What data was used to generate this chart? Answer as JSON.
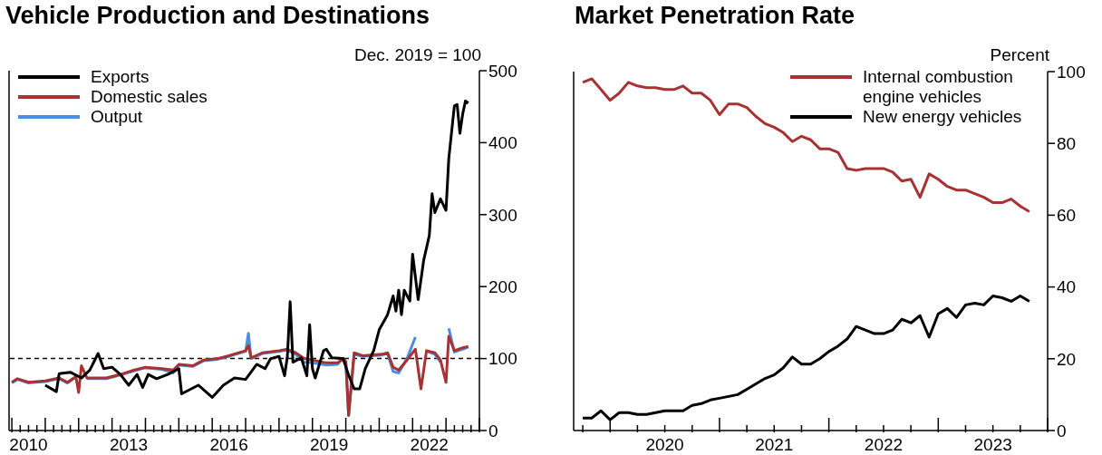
{
  "chart_data": [
    {
      "type": "line",
      "title": "Vehicle Production and Destinations",
      "ylabel": "Dec. 2019 = 100",
      "legend": "top left",
      "xlim": [
        "2009-12",
        "2024-01"
      ],
      "xticks": [
        {
          "value": "2010-01",
          "label": null
        },
        {
          "value": "2010-04",
          "label": null
        },
        {
          "value": "2010-07",
          "label": "2010"
        },
        {
          "value": "2010-10",
          "label": null
        },
        {
          "value": "2011-01",
          "label": null
        },
        {
          "value": "2011-04",
          "label": null
        },
        {
          "value": "2011-07",
          "label": null
        },
        {
          "value": "2011-10",
          "label": null
        },
        {
          "value": "2012-01",
          "label": null
        },
        {
          "value": "2012-04",
          "label": null
        },
        {
          "value": "2012-07",
          "label": null
        },
        {
          "value": "2012-10",
          "label": null
        },
        {
          "value": "2013-01",
          "label": null
        },
        {
          "value": "2013-04",
          "label": null
        },
        {
          "value": "2013-07",
          "label": "2013"
        },
        {
          "value": "2013-10",
          "label": null
        },
        {
          "value": "2014-01",
          "label": null
        },
        {
          "value": "2014-04",
          "label": null
        },
        {
          "value": "2014-07",
          "label": null
        },
        {
          "value": "2014-10",
          "label": null
        },
        {
          "value": "2015-01",
          "label": null
        },
        {
          "value": "2015-04",
          "label": null
        },
        {
          "value": "2015-07",
          "label": null
        },
        {
          "value": "2015-10",
          "label": null
        },
        {
          "value": "2016-01",
          "label": null
        },
        {
          "value": "2016-04",
          "label": null
        },
        {
          "value": "2016-07",
          "label": "2016"
        },
        {
          "value": "2016-10",
          "label": null
        },
        {
          "value": "2017-01",
          "label": null
        },
        {
          "value": "2017-04",
          "label": null
        },
        {
          "value": "2017-07",
          "label": null
        },
        {
          "value": "2017-10",
          "label": null
        },
        {
          "value": "2018-01",
          "label": null
        },
        {
          "value": "2018-04",
          "label": null
        },
        {
          "value": "2018-07",
          "label": null
        },
        {
          "value": "2018-10",
          "label": null
        },
        {
          "value": "2019-01",
          "label": null
        },
        {
          "value": "2019-04",
          "label": null
        },
        {
          "value": "2019-07",
          "label": "2019"
        },
        {
          "value": "2019-10",
          "label": null
        },
        {
          "value": "2020-01",
          "label": null
        },
        {
          "value": "2020-04",
          "label": null
        },
        {
          "value": "2020-07",
          "label": null
        },
        {
          "value": "2020-10",
          "label": null
        },
        {
          "value": "2021-01",
          "label": null
        },
        {
          "value": "2021-04",
          "label": null
        },
        {
          "value": "2021-07",
          "label": null
        },
        {
          "value": "2021-10",
          "label": null
        },
        {
          "value": "2022-01",
          "label": null
        },
        {
          "value": "2022-04",
          "label": null
        },
        {
          "value": "2022-07",
          "label": "2022"
        },
        {
          "value": "2022-10",
          "label": null
        },
        {
          "value": "2023-01",
          "label": null
        },
        {
          "value": "2023-04",
          "label": null
        },
        {
          "value": "2023-07",
          "label": null
        },
        {
          "value": "2023-10",
          "label": null
        },
        {
          "value": "2024-01",
          "label": null
        }
      ],
      "ylim": [
        0,
        500
      ],
      "yticks": [
        0,
        100,
        200,
        300,
        400,
        500
      ],
      "ref_lines": [
        {
          "axis": "y",
          "value": 100,
          "color": "#000000",
          "line_style": "dashed"
        }
      ],
      "series": [
        {
          "name": "Exports",
          "color": "#000000",
          "x": [
            "2011-01",
            "2011-05",
            "2011-06",
            "2011-10",
            "2012-02",
            "2012-05",
            "2012-08",
            "2012-10",
            "2013-01",
            "2013-04",
            "2013-07",
            "2013-10",
            "2013-12",
            "2014-02",
            "2014-05",
            "2014-09",
            "2015-01",
            "2015-02",
            "2015-08",
            "2016-01",
            "2016-05",
            "2016-09",
            "2017-01",
            "2017-05",
            "2017-08",
            "2017-10",
            "2018-01",
            "2018-03",
            "2018-04",
            "2018-05",
            "2018-06",
            "2018-09",
            "2018-11",
            "2018-12",
            "2019-01",
            "2019-02",
            "2019-05",
            "2019-06",
            "2019-08",
            "2019-12",
            "2020-02",
            "2020-04",
            "2020-06",
            "2020-08",
            "2020-11",
            "2021-01",
            "2021-04",
            "2021-06",
            "2021-07",
            "2021-08",
            "2021-09",
            "2021-10",
            "2021-12",
            "2022-01",
            "2022-03",
            "2022-05",
            "2022-07",
            "2022-08",
            "2022-09",
            "2022-11",
            "2023-01",
            "2023-02",
            "2023-04",
            "2023-05",
            "2023-06",
            "2023-07",
            "2023-08",
            "2023-09"
          ],
          "values": [
            63,
            54,
            79,
            81,
            73,
            84,
            107,
            86,
            88,
            78,
            63,
            78,
            60,
            78,
            72,
            78,
            86,
            51,
            63,
            46,
            63,
            73,
            71,
            92,
            86,
            100,
            103,
            76,
            103,
            179,
            95,
            101,
            76,
            147,
            86,
            73,
            111,
            113,
            101,
            100,
            77,
            58,
            58,
            86,
            111,
            140,
            161,
            187,
            166,
            195,
            161,
            195,
            180,
            245,
            182,
            237,
            271,
            329,
            303,
            322,
            306,
            378,
            451,
            453,
            413,
            440,
            458,
            455
          ]
        },
        {
          "name": "Domestic sales",
          "color": "#a83232",
          "x": [
            "2010-01",
            "2010-03",
            "2010-07",
            "2011-01",
            "2011-06",
            "2011-09",
            "2011-12",
            "2012-01",
            "2012-02",
            "2012-04",
            "2012-11",
            "2013-04",
            "2013-09",
            "2014-01",
            "2014-07",
            "2014-11",
            "2015-01",
            "2015-06",
            "2015-10",
            "2016-03",
            "2016-07",
            "2017-01",
            "2017-02",
            "2017-03",
            "2017-07",
            "2018-01",
            "2018-04",
            "2018-07",
            "2018-10",
            "2019-01",
            "2019-06",
            "2019-10",
            "2019-12",
            "2020-01",
            "2020-02",
            "2020-04",
            "2020-07",
            "2021-02",
            "2021-04",
            "2021-06",
            "2021-08",
            "2021-11",
            "2022-02",
            "2022-04",
            "2022-06",
            "2022-09",
            "2022-11",
            "2023-01",
            "2023-02",
            "2023-04",
            "2023-07",
            "2023-09"
          ],
          "values": [
            67,
            72,
            67,
            69,
            73,
            67,
            75,
            53,
            90,
            73,
            73,
            78,
            84,
            88,
            86,
            84,
            92,
            90,
            98,
            100,
            104,
            111,
            118,
            101,
            108,
            111,
            113,
            108,
            100,
            98,
            94,
            94,
            100,
            96,
            21,
            108,
            104,
            106,
            108,
            88,
            84,
            98,
            113,
            58,
            111,
            108,
            98,
            67,
            131,
            111,
            115,
            117
          ]
        },
        {
          "name": "Output",
          "color": "#4a90e2",
          "x": [
            "2010-01",
            "2010-03",
            "2010-07",
            "2011-01",
            "2011-06",
            "2011-09",
            "2011-12",
            "2012-01",
            "2012-02",
            "2012-04",
            "2012-11",
            "2013-04",
            "2013-09",
            "2014-01",
            "2014-07",
            "2014-11",
            "2015-01",
            "2015-06",
            "2015-10",
            "2016-03",
            "2016-07",
            "2017-01",
            "2017-02",
            "2017-03",
            "2017-07",
            "2018-01",
            "2018-04",
            "2018-07",
            "2018-10",
            "2019-01",
            "2019-06",
            "2019-10",
            "2019-12",
            "2020-01",
            "2020-02",
            "2020-04",
            "2020-07",
            "2021-02",
            "2021-04",
            "2021-06",
            "2021-08",
            "2021-11",
            "2022-02",
            "2022-04",
            "2022-06",
            "2022-09",
            "2022-11",
            "2023-01",
            "2023-02",
            "2023-04",
            "2023-07",
            "2023-09"
          ],
          "values": [
            66,
            71,
            66,
            68,
            72,
            66,
            74,
            null,
            null,
            72,
            72,
            77,
            83,
            87,
            85,
            80,
            91,
            89,
            97,
            99,
            103,
            110,
            135,
            100,
            107,
            110,
            112,
            106,
            95,
            94,
            91,
            92,
            100,
            95,
            21,
            106,
            103,
            105,
            107,
            82,
            80,
            100,
            130,
            null,
            110,
            106,
            95,
            null,
            142,
            109,
            113,
            116
          ]
        }
      ]
    },
    {
      "type": "line",
      "title": "Market Penetration Rate",
      "ylabel": "Percent",
      "legend": "top right",
      "xlim": [
        "2019-09",
        "2024-01"
      ],
      "xticks": [
        {
          "value": "2019-10",
          "label": null
        },
        {
          "value": "2020-01",
          "label": null
        },
        {
          "value": "2020-04",
          "label": null
        },
        {
          "value": "2020-07",
          "label": "2020"
        },
        {
          "value": "2020-10",
          "label": null
        },
        {
          "value": "2021-01",
          "label": null
        },
        {
          "value": "2021-04",
          "label": null
        },
        {
          "value": "2021-07",
          "label": "2021"
        },
        {
          "value": "2021-10",
          "label": null
        },
        {
          "value": "2022-01",
          "label": null
        },
        {
          "value": "2022-04",
          "label": null
        },
        {
          "value": "2022-07",
          "label": "2022"
        },
        {
          "value": "2022-10",
          "label": null
        },
        {
          "value": "2023-01",
          "label": null
        },
        {
          "value": "2023-04",
          "label": null
        },
        {
          "value": "2023-07",
          "label": "2023"
        },
        {
          "value": "2023-10",
          "label": null
        },
        {
          "value": "2024-01",
          "label": null
        }
      ],
      "ylim": [
        0,
        100
      ],
      "yticks": [
        0,
        20,
        40,
        60,
        80,
        100
      ],
      "series": [
        {
          "name": "Internal combustion engine vehicles",
          "color": "#a83232",
          "x": [
            "2019-10",
            "2019-11",
            "2019-12",
            "2020-01",
            "2020-02",
            "2020-03",
            "2020-04",
            "2020-05",
            "2020-06",
            "2020-07",
            "2020-08",
            "2020-09",
            "2020-10",
            "2020-11",
            "2020-12",
            "2021-01",
            "2021-02",
            "2021-03",
            "2021-04",
            "2021-05",
            "2021-06",
            "2021-07",
            "2021-08",
            "2021-09",
            "2021-10",
            "2021-11",
            "2021-12",
            "2022-01",
            "2022-02",
            "2022-03",
            "2022-04",
            "2022-05",
            "2022-06",
            "2022-07",
            "2022-08",
            "2022-09",
            "2022-10",
            "2022-11",
            "2022-12",
            "2023-01",
            "2023-02",
            "2023-03",
            "2023-04",
            "2023-05",
            "2023-06",
            "2023-07",
            "2023-08",
            "2023-09",
            "2023-10",
            "2023-11"
          ],
          "values": [
            97,
            98,
            95,
            92,
            94,
            97,
            96,
            95.5,
            95.5,
            95,
            95,
            96,
            94,
            94,
            92,
            88,
            91,
            91,
            90,
            87.5,
            85.5,
            84.5,
            83,
            80.5,
            82,
            81,
            78.5,
            78.5,
            77.5,
            73,
            72.5,
            73,
            73,
            73,
            72,
            69.5,
            70,
            65,
            71.5,
            70,
            68,
            67,
            67,
            66,
            65,
            63.5,
            63.5,
            64.5,
            62.5,
            61
          ]
        },
        {
          "name": "New energy vehicles",
          "color": "#000000",
          "x": [
            "2019-10",
            "2019-11",
            "2019-12",
            "2020-01",
            "2020-02",
            "2020-03",
            "2020-04",
            "2020-05",
            "2020-06",
            "2020-07",
            "2020-08",
            "2020-09",
            "2020-10",
            "2020-11",
            "2020-12",
            "2021-01",
            "2021-02",
            "2021-03",
            "2021-04",
            "2021-05",
            "2021-06",
            "2021-07",
            "2021-08",
            "2021-09",
            "2021-10",
            "2021-11",
            "2021-12",
            "2022-01",
            "2022-02",
            "2022-03",
            "2022-04",
            "2022-05",
            "2022-06",
            "2022-07",
            "2022-08",
            "2022-09",
            "2022-10",
            "2022-11",
            "2022-12",
            "2023-01",
            "2023-02",
            "2023-03",
            "2023-04",
            "2023-05",
            "2023-06",
            "2023-07",
            "2023-08",
            "2023-09",
            "2023-10",
            "2023-11"
          ],
          "values": [
            3.5,
            3.5,
            5.5,
            3,
            5,
            5,
            4.5,
            4.5,
            5,
            5.5,
            5.5,
            5.5,
            7,
            7.5,
            8.5,
            9,
            9.5,
            10,
            11.5,
            13,
            14.5,
            15.5,
            17.5,
            20.5,
            18.5,
            18.5,
            20,
            22,
            23.5,
            25.5,
            29,
            28,
            27,
            27,
            28,
            31,
            30,
            32,
            26,
            32.5,
            34,
            31.5,
            35,
            35.5,
            35,
            37.5,
            37,
            36,
            37.5,
            36
          ]
        }
      ]
    }
  ]
}
